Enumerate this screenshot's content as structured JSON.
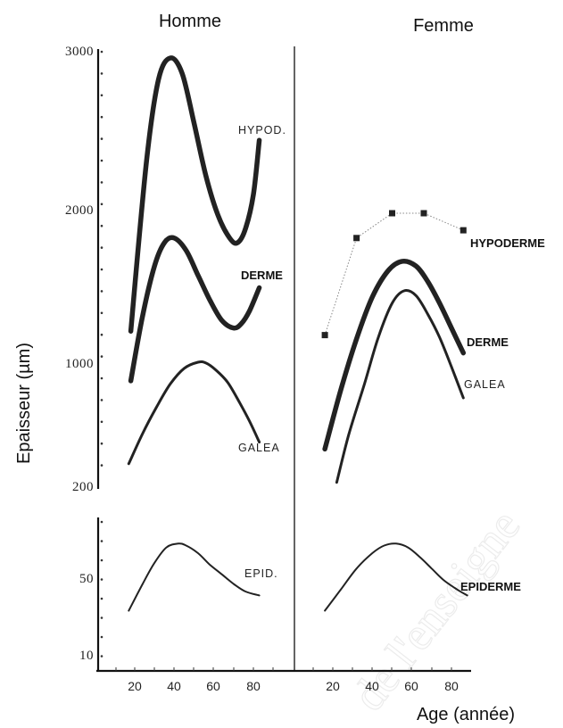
{
  "watermark": "de l'enseigne",
  "chart_data": {
    "type": "line",
    "ylabel": "Epaisseur (µm)",
    "xlabel": "Age (année)",
    "x_ticks": [
      20,
      40,
      60,
      80
    ],
    "panels": [
      {
        "title": "Homme",
        "series": [
          {
            "name": "HYPOD.",
            "style": "bold",
            "x": [
              18,
              26,
              32,
              38,
              44,
              50,
              56,
              62,
              68,
              72,
              76,
              80,
              83
            ],
            "y": [
              1200,
              2300,
              2820,
              2960,
              2860,
              2540,
              2200,
              1950,
              1800,
              1770,
              1860,
              2080,
              2430
            ]
          },
          {
            "name": "DERME",
            "style": "bold",
            "x": [
              18,
              24,
              30,
              35,
              40,
              46,
              52,
              58,
              64,
              70,
              74,
              78,
              83
            ],
            "y": [
              880,
              1300,
              1620,
              1770,
              1800,
              1720,
              1560,
              1400,
              1270,
              1220,
              1250,
              1330,
              1480
            ]
          },
          {
            "name": "GALEA",
            "style": "regular",
            "x": [
              17,
              24,
              31,
              38,
              45,
              52,
              56,
              61,
              67,
              73,
              78,
              83
            ],
            "y": [
              345,
              540,
              710,
              860,
              960,
              1000,
              995,
              950,
              870,
              740,
              620,
              485
            ]
          }
        ],
        "epid_series": {
          "name": "EPID.",
          "x": [
            17,
            24,
            30,
            36,
            42,
            46,
            52,
            58,
            64,
            70,
            76,
            83
          ],
          "y": [
            33,
            47,
            58,
            66,
            68,
            67,
            63,
            57,
            52,
            47,
            43,
            41
          ]
        }
      },
      {
        "title": "Femme",
        "series": [
          {
            "name": "HYPODERME",
            "style": "dotted-markers",
            "x": [
              16,
              32,
              50,
              66,
              86
            ],
            "y": [
              1175,
              1800,
              1960,
              1960,
              1850
            ]
          },
          {
            "name": "DERME",
            "style": "bold",
            "x": [
              16,
              24,
              32,
              40,
              48,
              55,
              62,
              68,
              74,
              80,
              86
            ],
            "y": [
              440,
              820,
              1150,
              1420,
              1590,
              1650,
              1620,
              1520,
              1380,
              1220,
              1060
            ]
          },
          {
            "name": "GALEA",
            "style": "regular",
            "x": [
              22,
              28,
              36,
              43,
              50,
              56,
              62,
              68,
              74,
              80,
              86
            ],
            "y": [
              225,
              530,
              860,
              1160,
              1380,
              1460,
              1430,
              1310,
              1160,
              970,
              770
            ]
          }
        ],
        "epid_series": {
          "name": "EPIDERME",
          "x": [
            16,
            24,
            32,
            40,
            46,
            52,
            58,
            64,
            70,
            76,
            83,
            88
          ],
          "y": [
            33,
            44,
            55,
            63,
            67,
            68,
            66,
            61,
            55,
            49,
            44,
            41
          ]
        }
      }
    ],
    "upper_yaxis": {
      "ticks": [
        3000,
        2000,
        1000,
        200
      ],
      "ylim": [
        200,
        3000
      ]
    },
    "lower_yaxis": {
      "ticks": [
        50,
        10
      ],
      "ylim": [
        0,
        80
      ]
    }
  }
}
